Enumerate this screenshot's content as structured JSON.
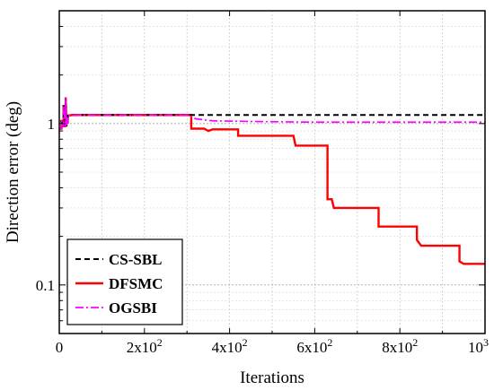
{
  "chart_data": {
    "type": "line",
    "title": "",
    "xlabel": "Iterations",
    "ylabel": "Direction error (deg)",
    "xlim": [
      0,
      1000
    ],
    "ylim": [
      0.05,
      5
    ],
    "yscale": "log",
    "grid": true,
    "legend_position": "bottom-left",
    "x_ticks": [
      {
        "value": 0,
        "label": "0"
      },
      {
        "value": 200,
        "label": "2x10",
        "sup": "2"
      },
      {
        "value": 400,
        "label": "4x10",
        "sup": "2"
      },
      {
        "value": 600,
        "label": "6x10",
        "sup": "2"
      },
      {
        "value": 800,
        "label": "8x10",
        "sup": "2"
      },
      {
        "value": 1000,
        "label": "10",
        "sup": "3"
      }
    ],
    "y_ticks": [
      {
        "value": 0.1,
        "label": "0.1"
      },
      {
        "value": 1,
        "label": "1"
      }
    ],
    "series": [
      {
        "name": "CS-SBL",
        "color": "#000000",
        "style": "dashed",
        "x": [
          0,
          5,
          5,
          10,
          10,
          15,
          15,
          17,
          17,
          20,
          20,
          30,
          1000
        ],
        "y": [
          0.93,
          0.93,
          1.05,
          0.95,
          1.3,
          0.95,
          1.45,
          0.96,
          1.12,
          1.0,
          1.12,
          1.13,
          1.13
        ]
      },
      {
        "name": "DFSMC",
        "color": "#ff0000",
        "style": "solid",
        "x": [
          0,
          5,
          5,
          10,
          10,
          15,
          15,
          17,
          17,
          20,
          20,
          30,
          310,
          310,
          340,
          350,
          360,
          420,
          420,
          550,
          555,
          630,
          630,
          640,
          645,
          750,
          750,
          760,
          840,
          840,
          850,
          940,
          940,
          950,
          1000
        ],
        "y": [
          0.93,
          0.93,
          1.05,
          0.95,
          1.3,
          0.95,
          1.45,
          0.96,
          1.12,
          1.0,
          1.12,
          1.13,
          1.13,
          0.93,
          0.93,
          0.9,
          0.92,
          0.92,
          0.84,
          0.84,
          0.73,
          0.73,
          0.34,
          0.34,
          0.3,
          0.3,
          0.23,
          0.23,
          0.23,
          0.19,
          0.175,
          0.175,
          0.14,
          0.135,
          0.135
        ]
      },
      {
        "name": "OGSBI",
        "color": "#ff00ff",
        "style": "dashdot",
        "x": [
          0,
          5,
          5,
          10,
          10,
          15,
          15,
          17,
          17,
          20,
          20,
          30,
          300,
          310,
          320,
          360,
          450,
          600,
          800,
          1000
        ],
        "y": [
          0.93,
          0.93,
          1.05,
          0.95,
          1.3,
          0.95,
          1.45,
          0.96,
          1.12,
          1.0,
          1.12,
          1.13,
          1.13,
          1.1,
          1.07,
          1.04,
          1.03,
          1.02,
          1.02,
          1.02
        ]
      }
    ]
  }
}
